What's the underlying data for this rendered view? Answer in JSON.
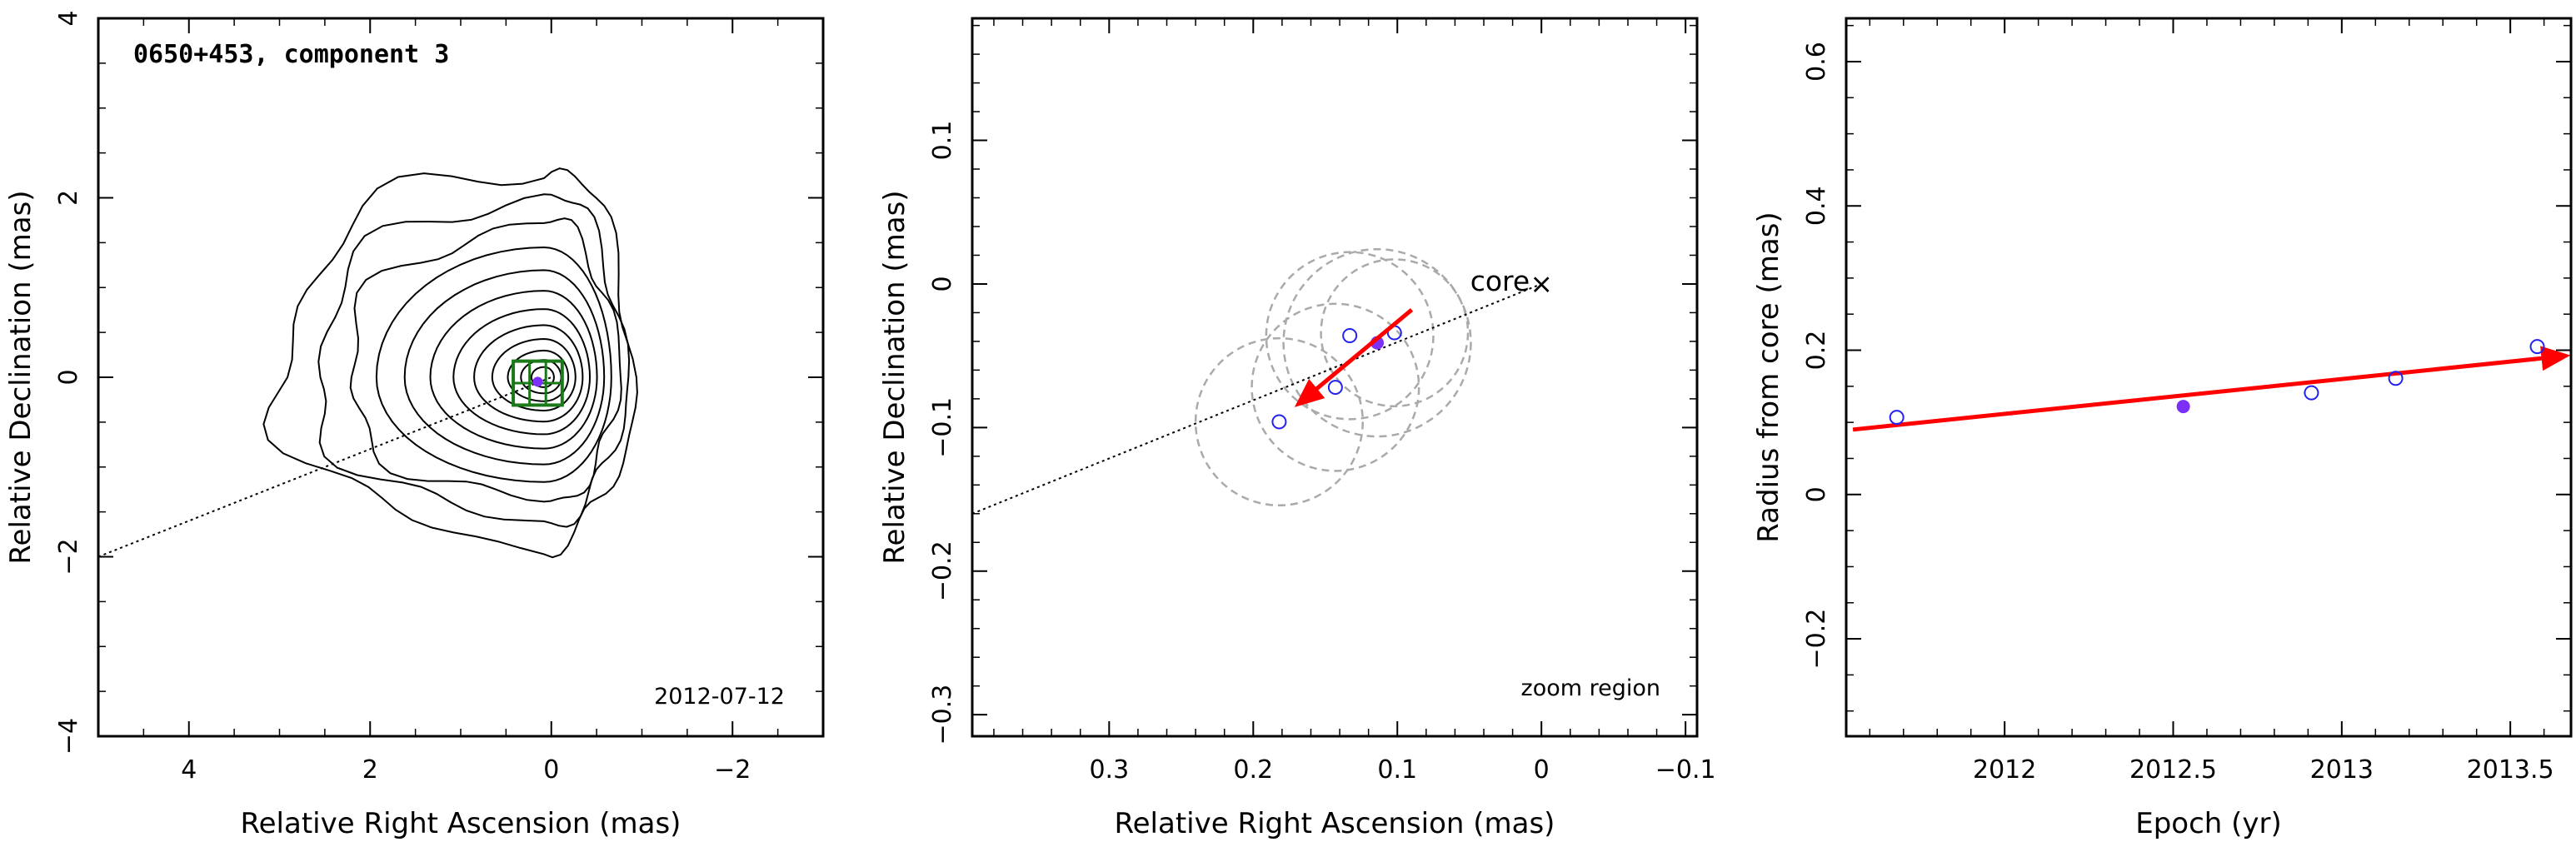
{
  "chart_data": [
    {
      "type": "contour",
      "title": "0650+453, component 3",
      "date": "2012-07-12",
      "xlabel": "Relative Right Ascension (mas)",
      "ylabel": "Relative Declination (mas)",
      "xlim": [
        5,
        -3
      ],
      "ylim": [
        -4,
        4
      ],
      "xticks": [
        4,
        2,
        0,
        -2
      ],
      "yticks": [
        -4,
        -2,
        0,
        2,
        4
      ],
      "xtick_labels": [
        "4",
        "2",
        "0",
        "−2"
      ],
      "ytick_labels": [
        "−4",
        "−2",
        "0",
        "2",
        "4"
      ],
      "contour_center": [
        0.08,
        0.0
      ],
      "contour_levels": 12,
      "component_position": [
        0.15,
        -0.05
      ],
      "zoom_box": {
        "x": [
          -0.12,
          0.42
        ],
        "y": [
          -0.31,
          0.18
        ]
      },
      "axis_line": {
        "x": [
          5,
          0
        ],
        "y": [
          -2.0,
          0.0
        ]
      },
      "colors": {
        "contour": "#000000",
        "zoom_box": "#1a7a1a",
        "component": "#7b2ff7",
        "arrow": "#ff0000"
      }
    },
    {
      "type": "scatter",
      "annotation_region": "zoom region",
      "annotation_core": "core",
      "core_marker": "×",
      "xlabel": "Relative Right Ascension (mas)",
      "ylabel": "Relative Declination (mas)",
      "xlim": [
        0.395,
        -0.108
      ],
      "ylim": [
        -0.315,
        0.185
      ],
      "xticks": [
        0.3,
        0.2,
        0.1,
        0,
        -0.1
      ],
      "yticks": [
        -0.3,
        -0.2,
        -0.1,
        0,
        0.1
      ],
      "xtick_labels": [
        "0.3",
        "0.2",
        "0.1",
        "0",
        "−0.1"
      ],
      "ytick_labels": [
        "−0.3",
        "−0.2",
        "−0.1",
        "0",
        "0.1"
      ],
      "core": [
        0.0,
        0.0
      ],
      "points": [
        {
          "x": 0.182,
          "y": -0.096
        },
        {
          "x": 0.143,
          "y": -0.072
        },
        {
          "x": 0.133,
          "y": -0.036
        },
        {
          "x": 0.102,
          "y": -0.034
        }
      ],
      "highlight_point": {
        "x": 0.114,
        "y": -0.041
      },
      "error_circles": [
        {
          "x": 0.182,
          "y": -0.096,
          "r": 0.058
        },
        {
          "x": 0.143,
          "y": -0.072,
          "r": 0.058
        },
        {
          "x": 0.133,
          "y": -0.036,
          "r": 0.058
        },
        {
          "x": 0.102,
          "y": -0.034,
          "r": 0.051
        },
        {
          "x": 0.114,
          "y": -0.041,
          "r": 0.065
        }
      ],
      "velocity_arrow": {
        "from": [
          0.09,
          -0.018
        ],
        "to": [
          0.168,
          -0.083
        ]
      },
      "axis_line": {
        "x": [
          0.395,
          0.0
        ],
        "y": [
          -0.16,
          0.0
        ]
      },
      "colors": {
        "points": "#2222ee",
        "highlight": "#7b2ff7",
        "circles": "#aaaaaa",
        "arrow": "#ff0000"
      }
    },
    {
      "type": "scatter",
      "xlabel": "Epoch (yr)",
      "ylabel": "Radius from core (mas)",
      "xlim": [
        2011.53,
        2013.68
      ],
      "ylim": [
        -0.335,
        0.66
      ],
      "xticks": [
        2012,
        2012.5,
        2013,
        2013.5
      ],
      "yticks": [
        -0.2,
        0,
        0.2,
        0.4,
        0.6
      ],
      "xtick_labels": [
        "2012",
        "2012.5",
        "2013",
        "2013.5"
      ],
      "ytick_labels": [
        "−0.2",
        "0",
        "0.2",
        "0.4",
        "0.6"
      ],
      "points": [
        {
          "x": 2011.68,
          "y": 0.107
        },
        {
          "x": 2012.91,
          "y": 0.141
        },
        {
          "x": 2013.16,
          "y": 0.161
        },
        {
          "x": 2013.58,
          "y": 0.205
        }
      ],
      "highlight_point": {
        "x": 2012.53,
        "y": 0.122
      },
      "fit_line": {
        "x0": 2011.55,
        "y0": 0.09,
        "x1": 2013.66,
        "y1": 0.192
      },
      "colors": {
        "points": "#2222ee",
        "highlight": "#7b2ff7",
        "fit": "#ff0000"
      }
    }
  ]
}
